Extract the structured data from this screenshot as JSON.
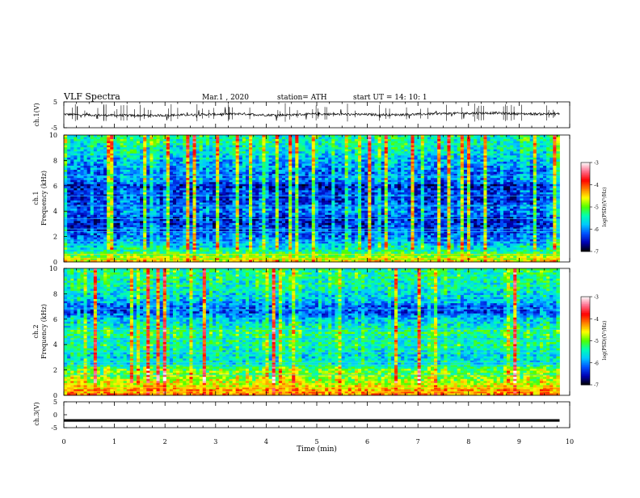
{
  "header": {
    "title": "VLF  Spectra",
    "date": "Mar.1  , 2020",
    "station": "station= ATH",
    "start": "start  UT  =   14: 10: 1"
  },
  "colors": {
    "spectrogram_scale": [
      "#000000",
      "#0000b4",
      "#0050ff",
      "#00c8ff",
      "#00ffb4",
      "#50ff00",
      "#ffff00",
      "#ff8000",
      "#ff0000",
      "#ff6e8c",
      "#ffffff"
    ],
    "trace": "#000000",
    "frame": "#000000"
  },
  "chart_data": [
    {
      "type": "line",
      "name": "ch1-waveform",
      "ylabel": "ch.1(V)",
      "ylim": [
        -5,
        5
      ],
      "yticks": [
        "5",
        "-5"
      ],
      "x": [
        0,
        0.5,
        1,
        1.5,
        2,
        2.5,
        3,
        3.5,
        4,
        4.5,
        5,
        5.5,
        6,
        6.5,
        7,
        7.5,
        8,
        8.5,
        9,
        9.5,
        9.8
      ],
      "values": [
        0.2,
        -0.1,
        -0.2,
        -0.3,
        -0.2,
        0.0,
        0.2,
        0.4,
        -0.1,
        0.0,
        0.3,
        0.2,
        0.1,
        0.0,
        0.2,
        0.5,
        0.6,
        0.7,
        0.4,
        0.3,
        0.4
      ]
    },
    {
      "type": "heatmap",
      "name": "ch1-spectrogram",
      "ylabel": "Frequency  (kHz)",
      "channel_label": "ch.1",
      "ylim": [
        0,
        10
      ],
      "yticks": [
        "0",
        "2",
        "4",
        "6",
        "8",
        "10"
      ],
      "colorbar": {
        "label": "log(PSD)(V²/Hz)",
        "range": [
          -7,
          -3
        ],
        "ticks": [
          "-3",
          "-4",
          "-5",
          "-6",
          "-7"
        ]
      },
      "freq_profile_kHz": [
        0,
        0.5,
        1,
        1.5,
        2,
        2.5,
        3,
        3.5,
        4,
        4.5,
        5,
        5.5,
        6,
        6.5,
        7,
        7.5,
        8,
        8.5,
        9,
        9.5,
        10
      ],
      "freq_profile_logpsd": [
        -4.5,
        -5.0,
        -5.6,
        -5.9,
        -6.2,
        -6.3,
        -6.5,
        -6.4,
        -6.1,
        -6.3,
        -6.4,
        -6.3,
        -6.6,
        -6.0,
        -6.2,
        -6.0,
        -5.9,
        -5.7,
        -5.6,
        -5.5,
        -5.5
      ]
    },
    {
      "type": "heatmap",
      "name": "ch2-spectrogram",
      "ylabel": "Frequency  (kHz)",
      "channel_label": "ch.2",
      "ylim": [
        0,
        10
      ],
      "yticks": [
        "0",
        "2",
        "4",
        "6",
        "8",
        "10"
      ],
      "colorbar": {
        "label": "log(PSD)(V²/Hz)",
        "range": [
          -7,
          -3
        ],
        "ticks": [
          "-3",
          "-4",
          "-5",
          "-6",
          "-7"
        ]
      },
      "freq_profile_kHz": [
        0,
        0.5,
        1,
        1.5,
        2,
        2.5,
        3,
        3.5,
        4,
        4.5,
        5,
        5.5,
        6,
        6.5,
        7,
        7.5,
        8,
        8.5,
        9,
        9.5,
        10
      ],
      "freq_profile_logpsd": [
        -4.2,
        -4.4,
        -4.8,
        -5.0,
        -5.1,
        -5.6,
        -5.7,
        -5.6,
        -5.4,
        -5.5,
        -5.3,
        -5.6,
        -5.8,
        -6.3,
        -6.2,
        -5.8,
        -5.7,
        -5.5,
        -5.5,
        -5.4,
        -5.4
      ]
    },
    {
      "type": "line",
      "name": "ch3-waveform",
      "ylabel": "ch.3(V)",
      "ylim": [
        -5,
        5
      ],
      "yticks": [
        "5",
        "0",
        "-5"
      ],
      "x": [
        0,
        9.8
      ],
      "values": [
        -2.2,
        -2.2
      ]
    }
  ],
  "xaxis": {
    "label": "Time  (min)",
    "ticks": [
      "0",
      "1",
      "2",
      "3",
      "4",
      "5",
      "6",
      "7",
      "8",
      "9",
      "10"
    ],
    "range": [
      0,
      10
    ],
    "data_end": 9.8
  }
}
